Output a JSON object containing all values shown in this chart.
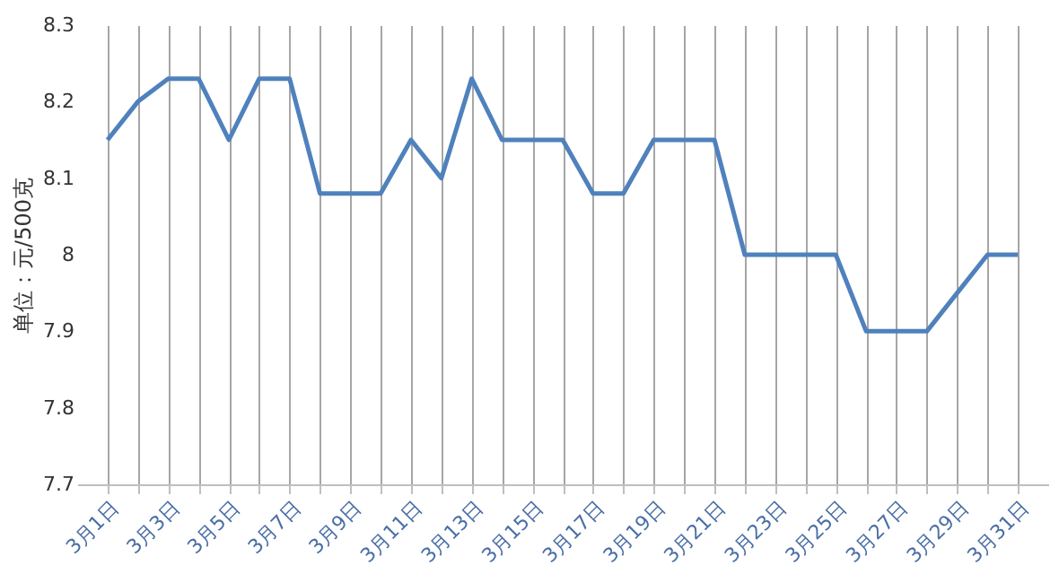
{
  "chart_data": {
    "type": "line",
    "ylabel": "单位：元/500克",
    "categories": [
      "3月1日",
      null,
      "3月3日",
      null,
      "3月5日",
      null,
      "3月7日",
      null,
      "3月9日",
      null,
      "3月11日",
      null,
      "3月13日",
      null,
      "3月15日",
      null,
      "3月17日",
      null,
      "3月19日",
      null,
      "3月21日",
      null,
      "3月23日",
      null,
      "3月25日",
      null,
      "3月27日",
      null,
      "3月29日",
      null,
      "3月31日"
    ],
    "series": [
      {
        "color": "#4f81bd",
        "values": [
          8.15,
          8.2,
          8.23,
          8.23,
          8.15,
          8.23,
          8.23,
          8.08,
          8.08,
          8.08,
          8.15,
          8.1,
          8.23,
          8.15,
          8.15,
          8.15,
          8.08,
          8.08,
          8.15,
          8.15,
          8.15,
          8.0,
          8.0,
          8.0,
          8.0,
          7.9,
          7.9,
          7.9,
          7.95,
          8.0,
          8.0
        ]
      }
    ],
    "ylim": [
      7.7,
      8.3
    ],
    "yticks": [
      7.7,
      7.8,
      7.9,
      8,
      8.1,
      8.2,
      8.3
    ],
    "grid": "x",
    "marker": "none",
    "line_style": "solid"
  }
}
